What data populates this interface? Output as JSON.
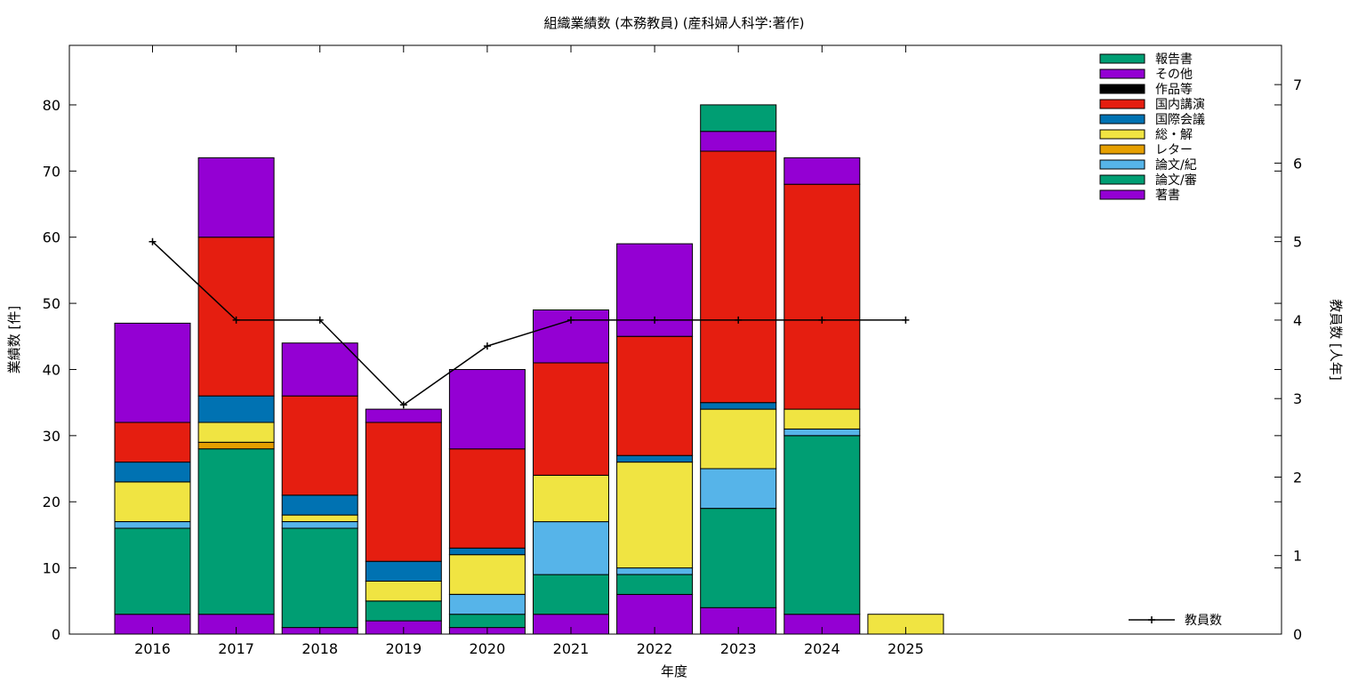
{
  "chart_data": {
    "type": "bar",
    "stacked": true,
    "title": "組織業績数 (本務教員) (産科婦人科学:著作)",
    "xlabel": "年度",
    "ylabel": "業績数 [件]",
    "y2label": "教員数 [人年]",
    "categories": [
      "2016",
      "2017",
      "2018",
      "2019",
      "2020",
      "2021",
      "2022",
      "2023",
      "2024",
      "2025"
    ],
    "ylim": [
      0,
      89
    ],
    "yticks": [
      0,
      10,
      20,
      30,
      40,
      50,
      60,
      70,
      80
    ],
    "y2lim": [
      0,
      7.5
    ],
    "y2ticks": [
      0,
      1,
      2,
      3,
      4,
      5,
      6,
      7
    ],
    "grid": false,
    "legend_position": "top-right",
    "series": [
      {
        "name": "著書",
        "color": "#9400d3",
        "values": [
          3,
          3,
          1,
          2,
          1,
          3,
          6,
          4,
          3,
          0
        ]
      },
      {
        "name": "論文/審",
        "color": "#009e73",
        "values": [
          13,
          25,
          15,
          3,
          2,
          6,
          3,
          15,
          27,
          0
        ]
      },
      {
        "name": "論文/紀",
        "color": "#56b4e9",
        "values": [
          1,
          0,
          1,
          0,
          3,
          8,
          1,
          6,
          1,
          0
        ]
      },
      {
        "name": "レター",
        "color": "#e69f00",
        "values": [
          0,
          1,
          0,
          0,
          0,
          0,
          0,
          0,
          0,
          0
        ]
      },
      {
        "name": "総・解",
        "color": "#f0e442",
        "values": [
          6,
          3,
          1,
          3,
          6,
          7,
          16,
          9,
          3,
          3
        ]
      },
      {
        "name": "国際会議",
        "color": "#0072b2",
        "values": [
          3,
          4,
          3,
          3,
          1,
          0,
          1,
          1,
          0,
          0
        ]
      },
      {
        "name": "国内講演",
        "color": "#e51e10",
        "values": [
          6,
          24,
          15,
          21,
          15,
          17,
          18,
          38,
          34,
          0
        ]
      },
      {
        "name": "作品等",
        "color": "#000000",
        "values": [
          0,
          0,
          0,
          0,
          0,
          0,
          0,
          0,
          0,
          0
        ]
      },
      {
        "name": "その他",
        "color": "#9400d3",
        "values": [
          15,
          12,
          8,
          2,
          12,
          8,
          14,
          3,
          4,
          0
        ]
      },
      {
        "name": "報告書",
        "color": "#009e73",
        "values": [
          0,
          0,
          0,
          0,
          0,
          0,
          0,
          4,
          0,
          0
        ]
      }
    ],
    "legend_order": [
      "報告書",
      "その他",
      "作品等",
      "国内講演",
      "国際会議",
      "総・解",
      "レター",
      "論文/紀",
      "論文/審",
      "著書"
    ],
    "line_series": {
      "name": "教員数",
      "axis": "y2",
      "color": "#000000",
      "values": [
        5,
        4,
        4,
        2.92,
        3.67,
        4,
        4,
        4,
        4,
        4
      ]
    }
  }
}
